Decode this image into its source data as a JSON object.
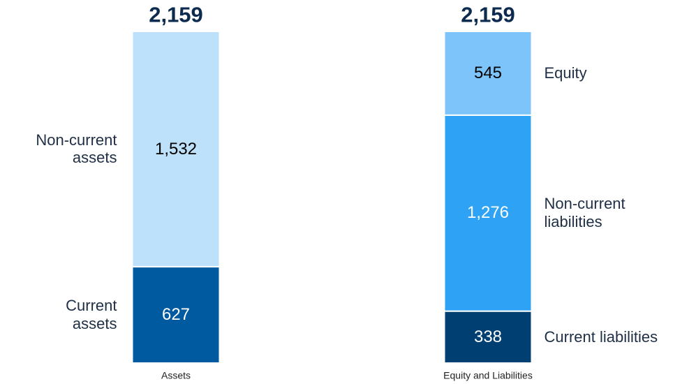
{
  "chart_data": {
    "type": "stacked_bar",
    "categories": [
      "Assets",
      "Equity and Liabilities"
    ],
    "totals": [
      2159,
      2159
    ],
    "total_labels": [
      "2,159",
      "2,159"
    ],
    "series": [
      {
        "name": "Current\nassets",
        "color": "#005aa0",
        "label_color": "#ffffff",
        "label_side": "left",
        "values": [
          627,
          null
        ]
      },
      {
        "name": "Non-current\nassets",
        "color": "#bde0fb",
        "label_color": "#000000",
        "label_side": "left",
        "values": [
          1532,
          null
        ],
        "value_labels": [
          "1,532",
          null
        ]
      },
      {
        "name": "Current liabilities",
        "color": "#003f72",
        "label_color": "#ffffff",
        "label_side": "right",
        "values": [
          null,
          338
        ]
      },
      {
        "name": "Non-current\nliabilities",
        "color": "#2ea3f5",
        "label_color": "#ffffff",
        "label_side": "right",
        "values": [
          null,
          1276
        ],
        "value_labels": [
          null,
          "1,276"
        ]
      },
      {
        "name": "Equity",
        "color": "#7dc4fb",
        "label_color": "#000000",
        "label_side": "right",
        "values": [
          null,
          545
        ]
      }
    ]
  }
}
